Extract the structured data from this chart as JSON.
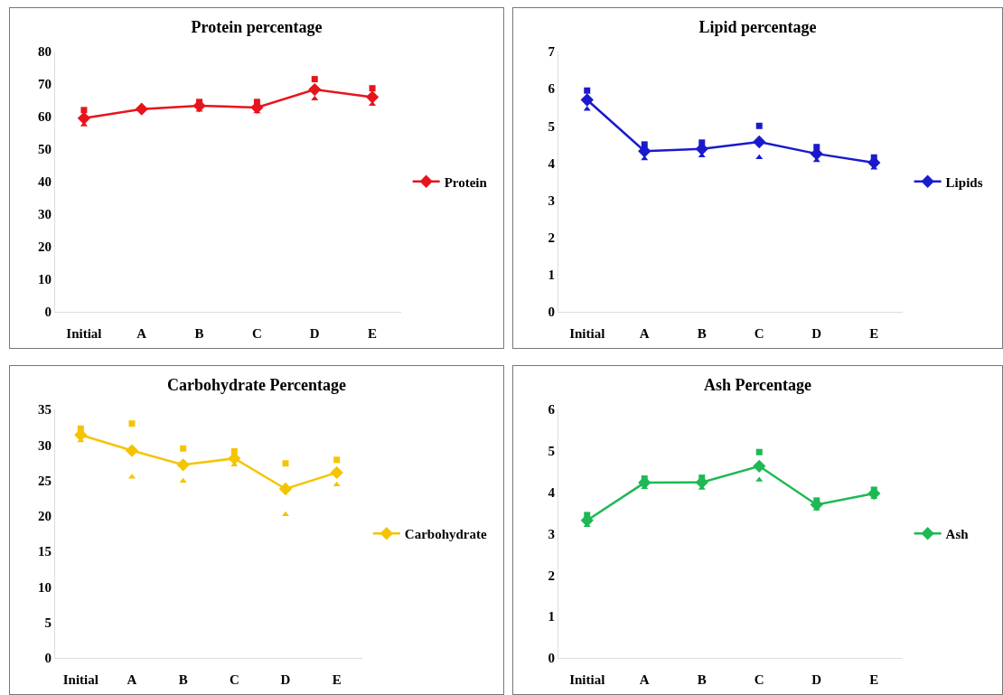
{
  "chart_data": [
    {
      "type": "line",
      "title": "Protein percentage",
      "categories": [
        "Initial",
        "A",
        "B",
        "C",
        "D",
        "E"
      ],
      "ylim": [
        0,
        80
      ],
      "yticks": [
        0,
        10,
        20,
        30,
        40,
        50,
        60,
        70,
        80
      ],
      "grid": false,
      "legend": "right",
      "line_style": "solid",
      "series": [
        {
          "name": "Protein",
          "marker": "diamond",
          "color": "#e8141c",
          "values": [
            59.5,
            62.3,
            63.3,
            62.8,
            68.3,
            66
          ]
        },
        {
          "type": "scatter",
          "marker": "square",
          "color": "#e8141c",
          "values": [
            62,
            null,
            64.5,
            64.5,
            71.5,
            68.7
          ]
        },
        {
          "type": "scatter",
          "marker": "triangle",
          "color": "#e8141c",
          "values": [
            57.5,
            null,
            62,
            61.5,
            65.5,
            63.8
          ]
        }
      ]
    },
    {
      "type": "line",
      "title": "Lipid percentage",
      "categories": [
        "Initial",
        "A",
        "B",
        "C",
        "D",
        "E"
      ],
      "ylim": [
        0,
        7
      ],
      "yticks": [
        0,
        1,
        2,
        3,
        4,
        5,
        6,
        7
      ],
      "grid": false,
      "legend": "right",
      "line_style": "solid",
      "series": [
        {
          "name": "Lipids",
          "marker": "diamond",
          "color": "#1a1acc",
          "values": [
            5.7,
            4.32,
            4.38,
            4.57,
            4.25,
            4.01
          ]
        },
        {
          "type": "scatter",
          "marker": "square",
          "color": "#1a1acc",
          "values": [
            5.95,
            4.5,
            4.55,
            5.0,
            4.43,
            4.15
          ]
        },
        {
          "type": "scatter",
          "marker": "triangle",
          "color": "#1a1acc",
          "values": [
            5.45,
            4.12,
            4.2,
            4.15,
            4.07,
            3.87
          ]
        }
      ]
    },
    {
      "type": "line",
      "title": "Carbohydrate Percentage",
      "categories": [
        "Initial",
        "A",
        "B",
        "C",
        "D",
        "E"
      ],
      "ylim": [
        0,
        35
      ],
      "yticks": [
        0,
        5,
        10,
        15,
        20,
        25,
        30,
        35
      ],
      "grid": false,
      "legend": "right",
      "line_style": "solid",
      "series": [
        {
          "name": "Carbohydrate",
          "marker": "diamond",
          "color": "#f5c400",
          "values": [
            31.4,
            29.2,
            27.2,
            28.1,
            23.8,
            26.1
          ]
        },
        {
          "type": "scatter",
          "marker": "square",
          "color": "#f5c400",
          "values": [
            32.3,
            33.0,
            29.5,
            29.1,
            27.4,
            27.9
          ]
        },
        {
          "type": "scatter",
          "marker": "triangle",
          "color": "#f5c400",
          "values": [
            30.6,
            25.5,
            24.9,
            27.2,
            20.2,
            24.4
          ]
        }
      ]
    },
    {
      "type": "line",
      "title": "Ash Percentage",
      "categories": [
        "Initial",
        "A",
        "B",
        "C",
        "D",
        "E"
      ],
      "ylim": [
        0,
        6
      ],
      "yticks": [
        0,
        1,
        2,
        3,
        4,
        5,
        6
      ],
      "grid": false,
      "legend": "right",
      "line_style": "solid",
      "series": [
        {
          "name": "Ash",
          "marker": "diamond",
          "color": "#1db954",
          "values": [
            3.32,
            4.23,
            4.24,
            4.63,
            3.7,
            3.97
          ]
        },
        {
          "type": "scatter",
          "marker": "square",
          "color": "#1db954",
          "values": [
            3.45,
            4.33,
            4.35,
            4.97,
            3.8,
            4.06
          ]
        },
        {
          "type": "scatter",
          "marker": "triangle",
          "color": "#1db954",
          "values": [
            3.2,
            4.12,
            4.1,
            4.3,
            3.6,
            3.88
          ]
        }
      ]
    }
  ]
}
